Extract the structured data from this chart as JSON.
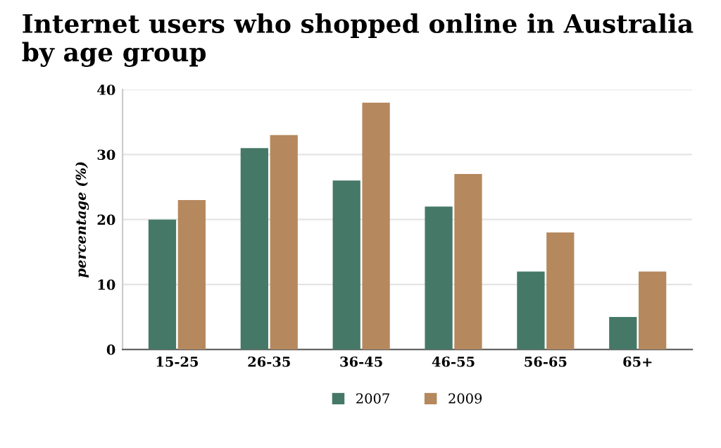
{
  "chart_data": {
    "type": "bar",
    "title": "Internet users who shopped online in Australia by age group",
    "ylabel": "percentage (%)",
    "categories": [
      "15-25",
      "26-35",
      "36-45",
      "46-55",
      "56-65",
      "65+"
    ],
    "series": [
      {
        "name": "2007",
        "color": "#467868",
        "values": [
          20,
          31,
          26,
          22,
          12,
          5
        ]
      },
      {
        "name": "2009",
        "color": "#b5885e",
        "values": [
          23,
          33,
          38,
          27,
          18,
          12
        ]
      }
    ],
    "ylim": [
      0,
      40
    ],
    "yticks": [
      0,
      10,
      20,
      30,
      40
    ],
    "grid": "y",
    "legend": "bottom"
  }
}
